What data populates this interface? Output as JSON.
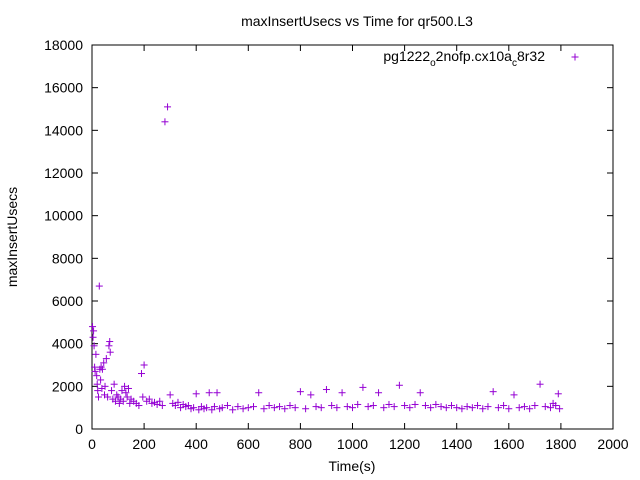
{
  "chart_data": {
    "type": "scatter",
    "title": "maxInsertUsecs vs Time for qr500.L3",
    "xlabel": "Time(s)",
    "ylabel": "maxInsertUsecs",
    "xlim": [
      0,
      2000
    ],
    "ylim": [
      0,
      18000
    ],
    "x_ticks": [
      "0",
      "200",
      "400",
      "600",
      "800",
      "1000",
      "1200",
      "1400",
      "1600",
      "1800",
      "2000"
    ],
    "y_ticks": [
      "0",
      "2000",
      "4000",
      "6000",
      "8000",
      "10000",
      "12000",
      "14000",
      "16000",
      "18000"
    ],
    "grid": false,
    "legend_position": "top-right",
    "marker": "plus",
    "series": [
      {
        "name_parts": [
          "pg1222",
          "o",
          "2nofp.cx10a",
          "c",
          "8r32"
        ],
        "color": "#9400d3",
        "points": [
          [
            2,
            4800
          ],
          [
            4,
            4300
          ],
          [
            6,
            4600
          ],
          [
            8,
            3900
          ],
          [
            10,
            2900
          ],
          [
            12,
            2700
          ],
          [
            15,
            3500
          ],
          [
            18,
            2500
          ],
          [
            20,
            2100
          ],
          [
            22,
            1800
          ],
          [
            25,
            1500
          ],
          [
            28,
            6700
          ],
          [
            30,
            2800
          ],
          [
            33,
            2300
          ],
          [
            35,
            2900
          ],
          [
            38,
            1900
          ],
          [
            40,
            2800
          ],
          [
            45,
            3100
          ],
          [
            48,
            1600
          ],
          [
            50,
            2000
          ],
          [
            55,
            3300
          ],
          [
            60,
            1500
          ],
          [
            65,
            3900
          ],
          [
            68,
            4100
          ],
          [
            70,
            3600
          ],
          [
            75,
            1800
          ],
          [
            80,
            1400
          ],
          [
            85,
            2100
          ],
          [
            90,
            1300
          ],
          [
            95,
            1600
          ],
          [
            100,
            1500
          ],
          [
            105,
            1200
          ],
          [
            110,
            1400
          ],
          [
            115,
            1800
          ],
          [
            120,
            1300
          ],
          [
            125,
            2000
          ],
          [
            130,
            1700
          ],
          [
            135,
            1500
          ],
          [
            140,
            1900
          ],
          [
            145,
            1200
          ],
          [
            150,
            1400
          ],
          [
            160,
            1300
          ],
          [
            170,
            1200
          ],
          [
            180,
            1100
          ],
          [
            190,
            2600
          ],
          [
            195,
            1500
          ],
          [
            200,
            3000
          ],
          [
            210,
            1300
          ],
          [
            220,
            1400
          ],
          [
            230,
            1200
          ],
          [
            240,
            1250
          ],
          [
            250,
            1150
          ],
          [
            260,
            1300
          ],
          [
            270,
            1100
          ],
          [
            280,
            14400
          ],
          [
            290,
            15100
          ],
          [
            300,
            1600
          ],
          [
            310,
            1200
          ],
          [
            320,
            1100
          ],
          [
            330,
            1250
          ],
          [
            340,
            1000
          ],
          [
            350,
            1150
          ],
          [
            360,
            1050
          ],
          [
            370,
            1100
          ],
          [
            380,
            950
          ],
          [
            390,
            1000
          ],
          [
            400,
            1650
          ],
          [
            410,
            900
          ],
          [
            420,
            1050
          ],
          [
            430,
            950
          ],
          [
            440,
            1000
          ],
          [
            450,
            1700
          ],
          [
            460,
            900
          ],
          [
            470,
            1050
          ],
          [
            480,
            1700
          ],
          [
            490,
            950
          ],
          [
            500,
            1000
          ],
          [
            520,
            1100
          ],
          [
            540,
            900
          ],
          [
            560,
            1050
          ],
          [
            580,
            950
          ],
          [
            600,
            1000
          ],
          [
            620,
            1050
          ],
          [
            640,
            1700
          ],
          [
            660,
            950
          ],
          [
            680,
            1100
          ],
          [
            700,
            1000
          ],
          [
            720,
            1050
          ],
          [
            740,
            950
          ],
          [
            760,
            1100
          ],
          [
            780,
            1000
          ],
          [
            800,
            1750
          ],
          [
            820,
            950
          ],
          [
            840,
            1600
          ],
          [
            860,
            1050
          ],
          [
            880,
            1000
          ],
          [
            900,
            1850
          ],
          [
            920,
            1100
          ],
          [
            940,
            1000
          ],
          [
            960,
            1700
          ],
          [
            980,
            1050
          ],
          [
            1000,
            1000
          ],
          [
            1020,
            1150
          ],
          [
            1040,
            1950
          ],
          [
            1060,
            1050
          ],
          [
            1080,
            1100
          ],
          [
            1100,
            1700
          ],
          [
            1120,
            1000
          ],
          [
            1140,
            1150
          ],
          [
            1160,
            1050
          ],
          [
            1180,
            2050
          ],
          [
            1200,
            1100
          ],
          [
            1220,
            1000
          ],
          [
            1240,
            1150
          ],
          [
            1260,
            1700
          ],
          [
            1280,
            1100
          ],
          [
            1300,
            1000
          ],
          [
            1320,
            1150
          ],
          [
            1340,
            1050
          ],
          [
            1360,
            1000
          ],
          [
            1380,
            1100
          ],
          [
            1400,
            1000
          ],
          [
            1420,
            950
          ],
          [
            1440,
            1050
          ],
          [
            1460,
            1000
          ],
          [
            1480,
            1100
          ],
          [
            1500,
            950
          ],
          [
            1520,
            1050
          ],
          [
            1540,
            1750
          ],
          [
            1560,
            1000
          ],
          [
            1580,
            1100
          ],
          [
            1600,
            950
          ],
          [
            1620,
            1600
          ],
          [
            1640,
            1000
          ],
          [
            1660,
            1050
          ],
          [
            1680,
            950
          ],
          [
            1700,
            1100
          ],
          [
            1720,
            2100
          ],
          [
            1740,
            1050
          ],
          [
            1760,
            1000
          ],
          [
            1770,
            1200
          ],
          [
            1780,
            1100
          ],
          [
            1790,
            1650
          ],
          [
            1795,
            950
          ]
        ]
      }
    ]
  }
}
